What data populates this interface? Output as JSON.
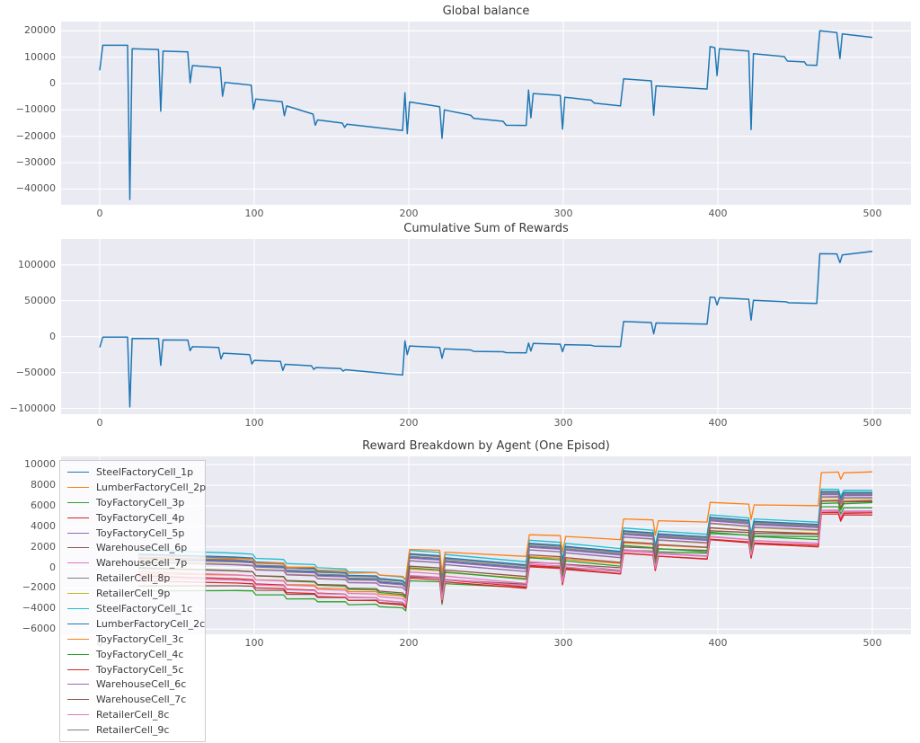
{
  "figure": {
    "background": "#ffffff",
    "axes_background": "#eaeaf2",
    "grid_color": "#ffffff",
    "title_color": "#3a3a3a",
    "tick_color": "#555555",
    "primary_line_color": "#1f77b4"
  },
  "chart_data": [
    {
      "id": "global-balance",
      "type": "line",
      "title": "Global balance",
      "xlabel": "",
      "ylabel": "",
      "xlim": [
        -25,
        525
      ],
      "ylim": [
        -46000,
        23500
      ],
      "xticks": [
        0,
        100,
        200,
        300,
        400,
        500
      ],
      "yticks": [
        20000,
        10000,
        0,
        -10000,
        -20000,
        -30000,
        -40000
      ],
      "grid": true,
      "series": [
        {
          "name": "global_balance",
          "color": "#1f77b4",
          "points": [
            [
              0,
              5000
            ],
            [
              2,
              14500
            ],
            [
              18,
              14500
            ],
            [
              19.5,
              -44000
            ],
            [
              21,
              13200
            ],
            [
              38,
              12900
            ],
            [
              39.5,
              -10500
            ],
            [
              41,
              12300
            ],
            [
              57,
              12000
            ],
            [
              58.5,
              300
            ],
            [
              60,
              6800
            ],
            [
              78,
              6000
            ],
            [
              79.5,
              -4800
            ],
            [
              81,
              400
            ],
            [
              98,
              -600
            ],
            [
              99.5,
              -9800
            ],
            [
              101,
              -5900
            ],
            [
              118,
              -6900
            ],
            [
              119.5,
              -12200
            ],
            [
              121,
              -8500
            ],
            [
              138,
              -11600
            ],
            [
              139.5,
              -15800
            ],
            [
              141,
              -13800
            ],
            [
              157,
              -15000
            ],
            [
              158.5,
              -16600
            ],
            [
              160,
              -15400
            ],
            [
              196,
              -17800
            ],
            [
              197.5,
              -3500
            ],
            [
              199,
              -19000
            ],
            [
              200.5,
              -7000
            ],
            [
              220,
              -8800
            ],
            [
              221.5,
              -20800
            ],
            [
              223,
              -10000
            ],
            [
              240,
              -12000
            ],
            [
              242,
              -13200
            ],
            [
              261,
              -14300
            ],
            [
              263,
              -15800
            ],
            [
              276,
              -15900
            ],
            [
              277.5,
              -2500
            ],
            [
              279,
              -13000
            ],
            [
              280.5,
              -3800
            ],
            [
              298,
              -4500
            ],
            [
              299.5,
              -17300
            ],
            [
              301,
              -5200
            ],
            [
              318,
              -6300
            ],
            [
              320,
              -7400
            ],
            [
              337,
              -8500
            ],
            [
              339,
              1800
            ],
            [
              357,
              1000
            ],
            [
              358.5,
              -12000
            ],
            [
              360,
              -900
            ],
            [
              393,
              -2100
            ],
            [
              395,
              14000
            ],
            [
              398,
              13600
            ],
            [
              399.5,
              3000
            ],
            [
              401,
              13200
            ],
            [
              420,
              12300
            ],
            [
              421.5,
              -17500
            ],
            [
              423,
              11300
            ],
            [
              443,
              10200
            ],
            [
              445,
              8500
            ],
            [
              456,
              8200
            ],
            [
              457.5,
              7000
            ],
            [
              464,
              6900
            ],
            [
              466,
              20000
            ],
            [
              477,
              19300
            ],
            [
              479,
              9500
            ],
            [
              480.5,
              18800
            ],
            [
              500,
              17500
            ]
          ]
        }
      ]
    },
    {
      "id": "cumulative-rewards",
      "type": "line",
      "title": "Cumulative Sum of Rewards",
      "xlabel": "",
      "ylabel": "",
      "xlim": [
        -25,
        525
      ],
      "ylim": [
        -108000,
        136000
      ],
      "xticks": [
        0,
        100,
        200,
        300,
        400,
        500
      ],
      "yticks": [
        100000,
        50000,
        0,
        -50000,
        -100000
      ],
      "grid": true,
      "series": [
        {
          "name": "cumulative_reward",
          "color": "#1f77b4",
          "points": [
            [
              0,
              -15000
            ],
            [
              2,
              -800
            ],
            [
              18,
              -600
            ],
            [
              19.5,
              -98000
            ],
            [
              21,
              -2600
            ],
            [
              38,
              -2800
            ],
            [
              39.5,
              -40000
            ],
            [
              41,
              -4600
            ],
            [
              57,
              -4800
            ],
            [
              58.5,
              -19500
            ],
            [
              60,
              -14000
            ],
            [
              77,
              -15200
            ],
            [
              78.5,
              -31000
            ],
            [
              80,
              -23000
            ],
            [
              97,
              -25000
            ],
            [
              98.5,
              -38000
            ],
            [
              100,
              -33000
            ],
            [
              117,
              -34500
            ],
            [
              118.5,
              -47000
            ],
            [
              120,
              -38500
            ],
            [
              137,
              -40500
            ],
            [
              138.5,
              -45500
            ],
            [
              140,
              -43000
            ],
            [
              156,
              -44500
            ],
            [
              157.5,
              -48000
            ],
            [
              159,
              -46000
            ],
            [
              196,
              -53500
            ],
            [
              197.5,
              -6000
            ],
            [
              199,
              -25000
            ],
            [
              200.5,
              -13000
            ],
            [
              220,
              -15000
            ],
            [
              221.5,
              -30000
            ],
            [
              223,
              -17000
            ],
            [
              240,
              -18500
            ],
            [
              242,
              -20500
            ],
            [
              261,
              -21000
            ],
            [
              263,
              -22300
            ],
            [
              276,
              -22500
            ],
            [
              277.5,
              -9000
            ],
            [
              279,
              -20000
            ],
            [
              280.5,
              -9500
            ],
            [
              298,
              -10500
            ],
            [
              299.5,
              -21000
            ],
            [
              301,
              -11200
            ],
            [
              318,
              -12000
            ],
            [
              320,
              -13200
            ],
            [
              337,
              -13800
            ],
            [
              339,
              21000
            ],
            [
              357,
              19600
            ],
            [
              358.5,
              4000
            ],
            [
              360,
              19000
            ],
            [
              393,
              17400
            ],
            [
              395,
              55000
            ],
            [
              398,
              54600
            ],
            [
              399.5,
              44000
            ],
            [
              401,
              54200
            ],
            [
              420,
              52000
            ],
            [
              421.5,
              23000
            ],
            [
              423,
              50500
            ],
            [
              444,
              48500
            ],
            [
              446,
              47200
            ],
            [
              464,
              46200
            ],
            [
              466,
              115500
            ],
            [
              477,
              115200
            ],
            [
              479,
              103000
            ],
            [
              480.5,
              113800
            ],
            [
              500,
              118800
            ]
          ]
        }
      ]
    },
    {
      "id": "reward-breakdown",
      "type": "line",
      "title": "Reward Breakdown by Agent (One Episod)",
      "xlabel": "",
      "ylabel": "",
      "xlim": [
        -25,
        525
      ],
      "ylim": [
        -6500,
        10800
      ],
      "xticks": [
        0,
        100,
        200,
        300,
        400,
        500
      ],
      "yticks": [
        10000,
        8000,
        6000,
        4000,
        2000,
        0,
        -2000,
        -4000,
        -6000
      ],
      "grid": true,
      "legend_position": "upper-left",
      "shared_x": [
        25,
        88,
        99,
        101,
        119,
        121,
        139,
        141,
        159,
        161,
        179,
        181,
        196,
        198,
        200.5,
        220,
        221.5,
        223.5,
        276,
        278,
        298,
        299.5,
        301.5,
        337,
        339,
        358,
        359.5,
        361.5,
        393,
        395,
        420,
        421.5,
        423.5,
        465,
        467,
        478,
        479.5,
        481.5,
        500
      ],
      "base": [
        300,
        0,
        -100,
        -500,
        -600,
        -1000,
        -1100,
        -1400,
        -1500,
        -1800,
        -1850,
        -2100,
        -2300,
        -2600,
        300,
        100,
        -2100,
        -100,
        -800,
        1300,
        1100,
        -500,
        1000,
        500,
        2500,
        2300,
        800,
        2200,
        1900,
        3800,
        3500,
        2000,
        3400,
        3100,
        6300,
        6300,
        5600,
        6200,
        6200
      ],
      "series": [
        {
          "name": "SteelFactoryCell_1p",
          "color": "#1f77b4",
          "start_offset": 600,
          "end_offset": 800
        },
        {
          "name": "LumberFactoryCell_2p",
          "color": "#ff7f0e",
          "start_offset": -900,
          "end_offset": 300
        },
        {
          "name": "ToyFactoryCell_3p",
          "color": "#2ca02c",
          "start_offset": -2600,
          "end_offset": 100
        },
        {
          "name": "ToyFactoryCell_4p",
          "color": "#d62728",
          "start_offset": -1100,
          "end_offset": -1100
        },
        {
          "name": "ToyFactoryCell_5p",
          "color": "#9467bd",
          "start_offset": 500,
          "end_offset": 800
        },
        {
          "name": "WarehouseCell_6p",
          "color": "#8c564b",
          "start_offset": -2100,
          "end_offset": 300
        },
        {
          "name": "WarehouseCell_7p",
          "color": "#e377c2",
          "start_offset": -700,
          "end_offset": -800
        },
        {
          "name": "RetailerCell_8p",
          "color": "#7f7f7f",
          "start_offset": 900,
          "end_offset": 1000
        },
        {
          "name": "RetailerCell_9p",
          "color": "#bcbd22",
          "start_offset": 300,
          "end_offset": 500
        },
        {
          "name": "SteelFactoryCell_1c",
          "color": "#17becf",
          "start_offset": 1400,
          "end_offset": 1300
        },
        {
          "name": "LumberFactoryCell_2c",
          "color": "#1f77b4",
          "start_offset": 1000,
          "end_offset": 1100
        },
        {
          "name": "ToyFactoryCell_3c",
          "color": "#ff7f0e",
          "start_offset": 500,
          "end_offset": 3100
        },
        {
          "name": "ToyFactoryCell_4c",
          "color": "#2ca02c",
          "start_offset": -300,
          "end_offset": -400
        },
        {
          "name": "ToyFactoryCell_5c",
          "color": "#d62728",
          "start_offset": -1600,
          "end_offset": -900
        },
        {
          "name": "WarehouseCell_6c",
          "color": "#9467bd",
          "start_offset": 200,
          "end_offset": 600
        },
        {
          "name": "WarehouseCell_7c",
          "color": "#8c564b",
          "start_offset": -400,
          "end_offset": 200
        },
        {
          "name": "RetailerCell_8c",
          "color": "#e377c2",
          "start_offset": -1300,
          "end_offset": -700
        },
        {
          "name": "RetailerCell_9c",
          "color": "#7f7f7f",
          "start_offset": 700,
          "end_offset": 900
        }
      ]
    }
  ]
}
